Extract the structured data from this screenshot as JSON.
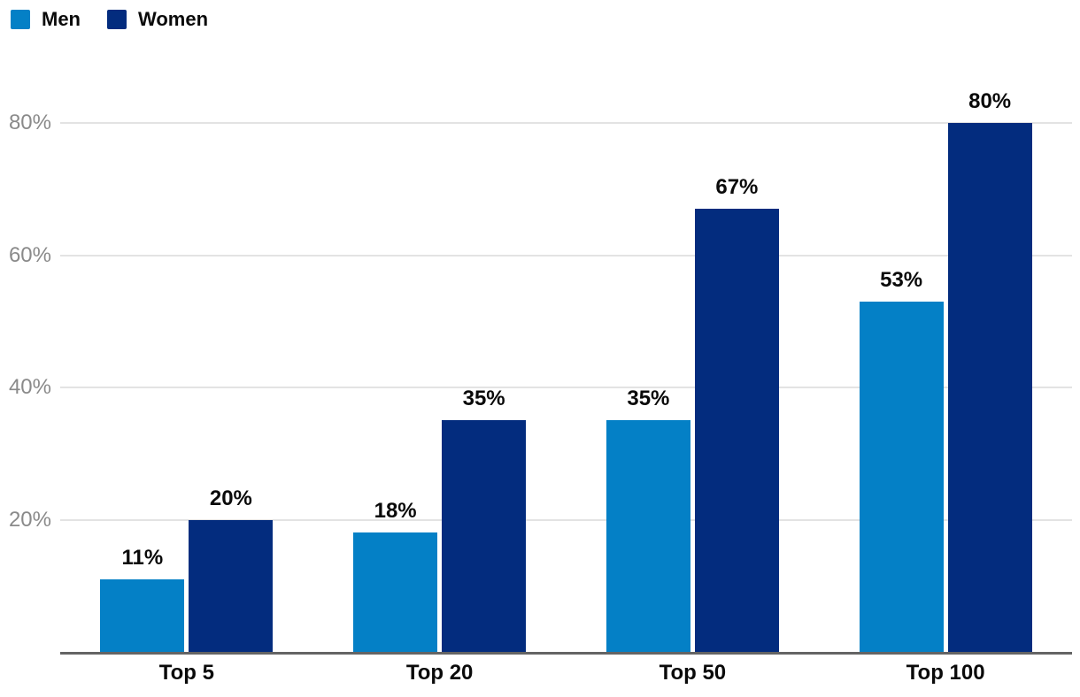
{
  "chart_data": {
    "type": "bar",
    "title": "",
    "categories": [
      "Top 5",
      "Top 20",
      "Top 50",
      "Top 100"
    ],
    "series": [
      {
        "name": "Men",
        "color": "#0480c6",
        "values": [
          11,
          18,
          35,
          53
        ],
        "value_labels": [
          "11%",
          "18%",
          "35%",
          "53%"
        ]
      },
      {
        "name": "Women",
        "color": "#032c7e",
        "values": [
          20,
          35,
          67,
          80
        ],
        "value_labels": [
          "20%",
          "35%",
          "67%",
          "80%"
        ]
      }
    ],
    "y_axis": {
      "ticks": [
        20,
        40,
        60,
        80
      ],
      "tick_labels": [
        "20%",
        "40%",
        "60%",
        "80%"
      ],
      "range": [
        0,
        88
      ],
      "grid": true
    },
    "x_axis": {
      "labels": [
        "Top 5",
        "Top 20",
        "Top 50",
        "Top 100"
      ]
    },
    "legend_position": "top-left",
    "value_labels_shown": true,
    "colors": {
      "men_bar": "#0480c6",
      "women_bar": "#032c7e",
      "gridline": "#e3e3e3",
      "axis_line": "#646464",
      "tick_text": "#8a8a8a",
      "label_text": "#0a0a0a",
      "background": "#ffffff"
    }
  }
}
